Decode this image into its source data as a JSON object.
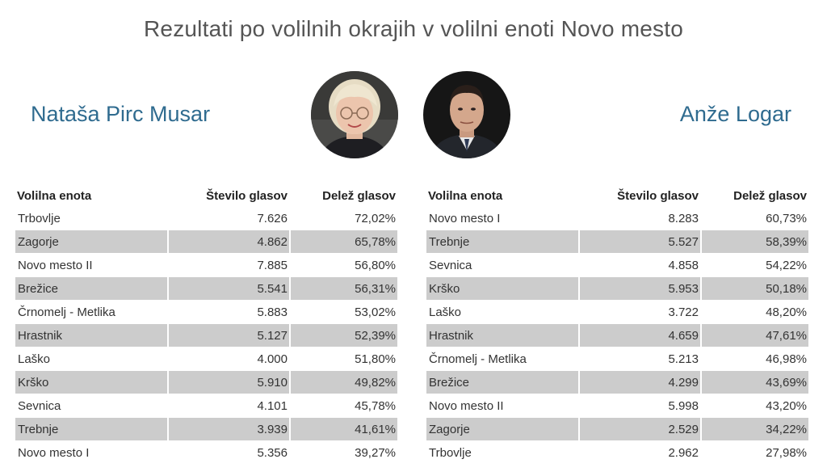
{
  "title": "Rezultati po volilnih okrajih v volilni enoti Novo mesto",
  "candidates": {
    "left": {
      "name": "Nataša Pirc Musar",
      "photo_icon": "woman-portrait-icon"
    },
    "right": {
      "name": "Anže Logar",
      "photo_icon": "man-portrait-icon"
    }
  },
  "columns": {
    "district": "Volilna enota",
    "votes": "Število glasov",
    "share": "Delež glasov"
  },
  "left_table": [
    {
      "district": "Trbovlje",
      "votes": "7.626",
      "share": "72,02%"
    },
    {
      "district": "Zagorje",
      "votes": "4.862",
      "share": "65,78%"
    },
    {
      "district": "Novo mesto II",
      "votes": "7.885",
      "share": "56,80%"
    },
    {
      "district": "Brežice",
      "votes": "5.541",
      "share": "56,31%"
    },
    {
      "district": "Črnomelj - Metlika",
      "votes": "5.883",
      "share": "53,02%"
    },
    {
      "district": "Hrastnik",
      "votes": "5.127",
      "share": "52,39%"
    },
    {
      "district": "Laško",
      "votes": "4.000",
      "share": "51,80%"
    },
    {
      "district": "Krško",
      "votes": "5.910",
      "share": "49,82%"
    },
    {
      "district": "Sevnica",
      "votes": "4.101",
      "share": "45,78%"
    },
    {
      "district": "Trebnje",
      "votes": "3.939",
      "share": "41,61%"
    },
    {
      "district": "Novo mesto I",
      "votes": "5.356",
      "share": "39,27%"
    }
  ],
  "right_table": [
    {
      "district": "Novo mesto I",
      "votes": "8.283",
      "share": "60,73%"
    },
    {
      "district": "Trebnje",
      "votes": "5.527",
      "share": "58,39%"
    },
    {
      "district": "Sevnica",
      "votes": "4.858",
      "share": "54,22%"
    },
    {
      "district": "Krško",
      "votes": "5.953",
      "share": "50,18%"
    },
    {
      "district": "Laško",
      "votes": "3.722",
      "share": "48,20%"
    },
    {
      "district": "Hrastnik",
      "votes": "4.659",
      "share": "47,61%"
    },
    {
      "district": "Črnomelj - Metlika",
      "votes": "5.213",
      "share": "46,98%"
    },
    {
      "district": "Brežice",
      "votes": "4.299",
      "share": "43,69%"
    },
    {
      "district": "Novo mesto II",
      "votes": "5.998",
      "share": "43,20%"
    },
    {
      "district": "Zagorje",
      "votes": "2.529",
      "share": "34,22%"
    },
    {
      "district": "Trbovlje",
      "votes": "2.962",
      "share": "27,98%"
    }
  ]
}
